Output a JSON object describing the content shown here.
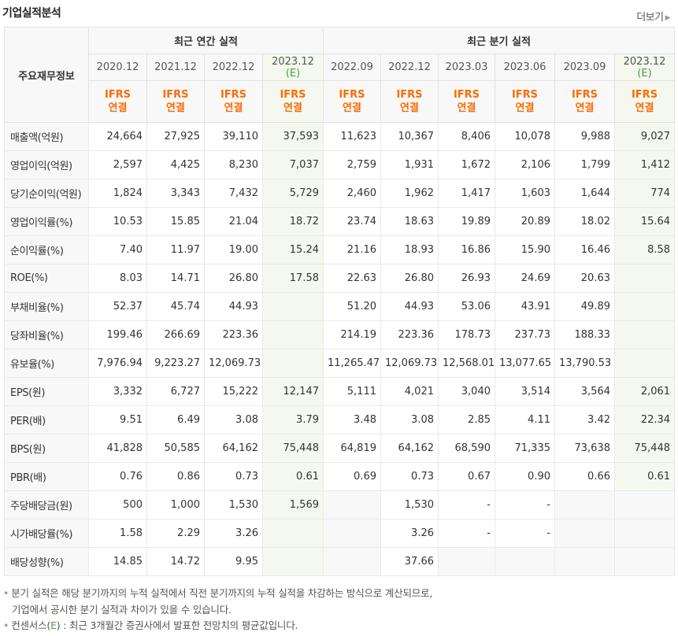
{
  "title": "기업실적분석",
  "more": "더보기",
  "header": {
    "label_col": "주요재무정보",
    "annual_group": "최근 연간 실적",
    "quarter_group": "최근 분기 실적",
    "annual_periods": [
      "2020.12",
      "2021.12",
      "2022.12",
      "2023.12"
    ],
    "annual_est": [
      "",
      "",
      "",
      "(E)"
    ],
    "quarter_periods": [
      "2022.09",
      "2022.12",
      "2023.03",
      "2023.06",
      "2023.09",
      "2023.12"
    ],
    "quarter_est": [
      "",
      "",
      "",
      "",
      "",
      "(E)"
    ],
    "acc_line1": "IFRS",
    "acc_line2": "연결"
  },
  "rows": [
    {
      "label": "매출액(억원)",
      "values": [
        "24,664",
        "27,925",
        "39,110",
        "37,593",
        "11,623",
        "10,367",
        "8,406",
        "10,078",
        "9,988",
        "9,027"
      ]
    },
    {
      "label": "영업이익(억원)",
      "values": [
        "2,597",
        "4,425",
        "8,230",
        "7,037",
        "2,759",
        "1,931",
        "1,672",
        "2,106",
        "1,799",
        "1,412"
      ]
    },
    {
      "label": "당기순이익(억원)",
      "values": [
        "1,824",
        "3,343",
        "7,432",
        "5,729",
        "2,460",
        "1,962",
        "1,417",
        "1,603",
        "1,644",
        "774"
      ]
    },
    {
      "label": "영업이익률(%)",
      "values": [
        "10.53",
        "15.85",
        "21.04",
        "18.72",
        "23.74",
        "18.63",
        "19.89",
        "20.89",
        "18.02",
        "15.64"
      ]
    },
    {
      "label": "순이익률(%)",
      "values": [
        "7.40",
        "11.97",
        "19.00",
        "15.24",
        "21.16",
        "18.93",
        "16.86",
        "15.90",
        "16.46",
        "8.58"
      ]
    },
    {
      "label": "ROE(%)",
      "values": [
        "8.03",
        "14.71",
        "26.80",
        "17.58",
        "22.63",
        "26.80",
        "26.93",
        "24.69",
        "20.63",
        ""
      ]
    },
    {
      "label": "부채비율(%)",
      "values": [
        "52.37",
        "45.74",
        "44.93",
        "",
        "51.20",
        "44.93",
        "53.06",
        "43.91",
        "49.89",
        ""
      ]
    },
    {
      "label": "당좌비율(%)",
      "values": [
        "199.46",
        "266.69",
        "223.36",
        "",
        "214.19",
        "223.36",
        "178.73",
        "237.73",
        "188.33",
        ""
      ]
    },
    {
      "label": "유보율(%)",
      "values": [
        "7,976.94",
        "9,223.27",
        "12,069.73",
        "",
        "11,265.47",
        "12,069.73",
        "12,568.01",
        "13,077.65",
        "13,790.53",
        ""
      ]
    },
    {
      "label": "EPS(원)",
      "values": [
        "3,332",
        "6,727",
        "15,222",
        "12,147",
        "5,111",
        "4,021",
        "3,040",
        "3,514",
        "3,564",
        "2,061"
      ]
    },
    {
      "label": "PER(배)",
      "values": [
        "9.51",
        "6.49",
        "3.08",
        "3.79",
        "3.48",
        "3.08",
        "2.85",
        "4.11",
        "3.42",
        "22.34"
      ]
    },
    {
      "label": "BPS(원)",
      "values": [
        "41,828",
        "50,585",
        "64,162",
        "75,448",
        "64,819",
        "64,162",
        "68,590",
        "71,335",
        "73,638",
        "75,448"
      ]
    },
    {
      "label": "PBR(배)",
      "values": [
        "0.76",
        "0.86",
        "0.73",
        "0.61",
        "0.69",
        "0.73",
        "0.67",
        "0.90",
        "0.66",
        "0.61"
      ]
    },
    {
      "label": "주당배당금(원)",
      "values": [
        "500",
        "1,000",
        "1,530",
        "1,569",
        "",
        "1,530",
        "-",
        "-",
        "",
        ""
      ]
    },
    {
      "label": "시가배당률(%)",
      "values": [
        "1.58",
        "2.29",
        "3.26",
        "",
        "",
        "3.26",
        "-",
        "-",
        "",
        ""
      ]
    },
    {
      "label": "배당성향(%)",
      "values": [
        "14.85",
        "14.72",
        "9.95",
        "",
        "",
        "37.66",
        "",
        "",
        "",
        ""
      ]
    }
  ],
  "notes": {
    "line1": "분기 실적은 해당 분기까지의 누적 실적에서 직전 분기까지의 누적 실적을 차감하는 방식으로 계산되므로,",
    "line2": "기업에서 공시한 분기 실적과 차이가 있을 수 있습니다.",
    "line3_prefix": "컨센서스(",
    "line3_mark": "E",
    "line3_suffix": ") : 최근 3개월간 증권사에서 발표한 전망치의 평균값입니다."
  },
  "colors": {
    "accounting_orange": "#ff6a00",
    "estimate_green": "#45a049",
    "estimate_bg": "#f4f8ee",
    "header_bg": "#f8f8f8"
  }
}
